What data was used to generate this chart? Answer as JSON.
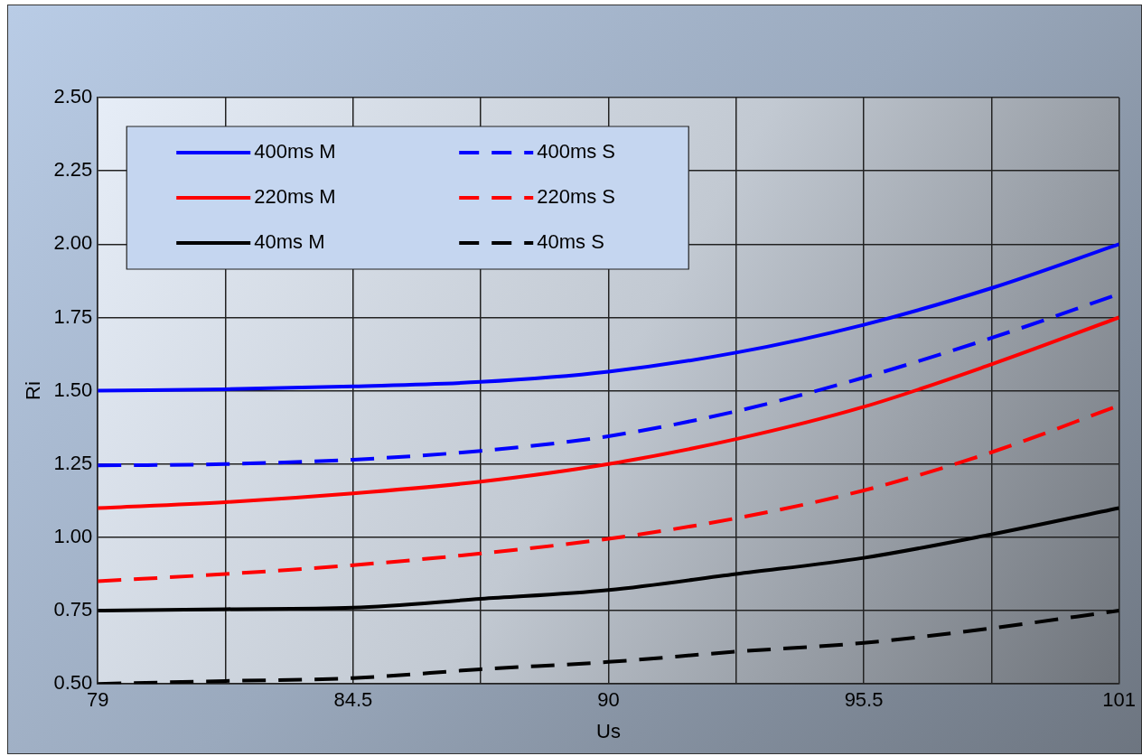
{
  "chart_data": {
    "type": "line",
    "xlabel": "Us",
    "ylabel": "Ri",
    "x": [
      79,
      81.75,
      84.5,
      87.25,
      90,
      92.75,
      95.5,
      98.25,
      101
    ],
    "xlim": [
      79,
      101
    ],
    "xticks": [
      79,
      {
        "value": 81.75,
        "label": null
      },
      84.5,
      {
        "value": 87.25,
        "label": null
      },
      90,
      {
        "value": 92.75,
        "label": null
      },
      95.5,
      {
        "value": 98.25,
        "label": null
      },
      101
    ],
    "ylim": [
      0.5,
      2.5
    ],
    "yticks": [
      {
        "value": 0.5,
        "label": "0.50"
      },
      {
        "value": 0.75,
        "label": "0.75"
      },
      {
        "value": 1,
        "label": "1.00"
      },
      {
        "value": 1.25,
        "label": "1.25"
      },
      {
        "value": 1.5,
        "label": "1.50"
      },
      {
        "value": 1.75,
        "label": "1.75"
      },
      {
        "value": 2,
        "label": "2.00"
      },
      {
        "value": 2.25,
        "label": "2.25"
      },
      {
        "value": 2.5,
        "label": "2.50"
      }
    ],
    "grid": true,
    "legend": "top left",
    "marker": "none",
    "series": [
      {
        "name": "400ms M",
        "color": "#0000ff",
        "line_style": "solid",
        "values": [
          1.5,
          1.505,
          1.515,
          1.53,
          1.565,
          1.63,
          1.725,
          1.85,
          2.0
        ]
      },
      {
        "name": "400ms S",
        "color": "#0000ff",
        "line_style": "dashed",
        "values": [
          1.245,
          1.25,
          1.265,
          1.295,
          1.345,
          1.43,
          1.545,
          1.68,
          1.83
        ]
      },
      {
        "name": "220ms M",
        "color": "#ff0000",
        "line_style": "solid",
        "values": [
          1.1,
          1.12,
          1.15,
          1.19,
          1.25,
          1.335,
          1.445,
          1.59,
          1.75
        ]
      },
      {
        "name": "220ms S",
        "color": "#ff0000",
        "line_style": "dashed",
        "values": [
          0.85,
          0.875,
          0.905,
          0.945,
          0.995,
          1.065,
          1.16,
          1.29,
          1.45
        ]
      },
      {
        "name": "40ms M",
        "color": "#000000",
        "line_style": "solid",
        "values": [
          0.75,
          0.755,
          0.76,
          0.79,
          0.82,
          0.875,
          0.93,
          1.01,
          1.1
        ]
      },
      {
        "name": "40ms S",
        "color": "#000000",
        "line_style": "dashed",
        "values": [
          0.5,
          0.51,
          0.52,
          0.55,
          0.575,
          0.61,
          0.64,
          0.69,
          0.75
        ]
      }
    ]
  }
}
